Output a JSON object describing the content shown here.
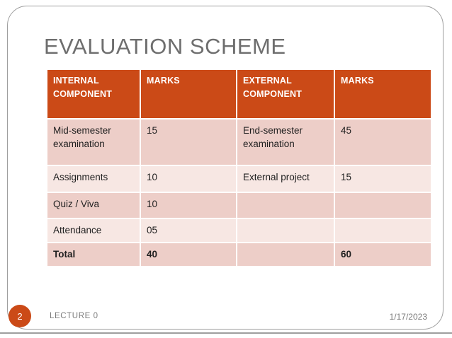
{
  "slide": {
    "title": "EVALUATION SCHEME",
    "page_number": "2",
    "footer": "LECTURE 0",
    "date": "1/17/2023"
  },
  "table": {
    "headers": [
      "INTERNAL COMPONENT",
      "MARKS",
      "EXTERNAL COMPONENT",
      "MARKS"
    ],
    "rows": [
      [
        "Mid-semester examination",
        "15",
        "End-semester examination",
        "45"
      ],
      [
        "Assignments",
        "10",
        "External project",
        "15"
      ],
      [
        "Quiz / Viva",
        "10",
        "",
        ""
      ],
      [
        "Attendance",
        "05",
        "",
        ""
      ],
      [
        "Total",
        "40",
        "",
        "60"
      ]
    ]
  },
  "colors": {
    "accent": "#CB4A17",
    "row_dark": "#EDCEC8",
    "row_light": "#F7E7E3",
    "title": "#6E6E6E",
    "footer": "#7C7C7C",
    "frame": "#9E9E9E",
    "cell_text": "#1F1F1F"
  }
}
